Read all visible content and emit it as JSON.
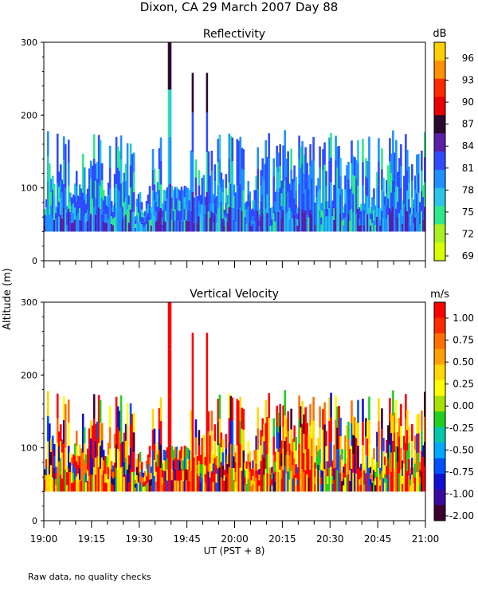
{
  "title": "Dixon, CA 29 March 2007  Day  88",
  "shared_ylabel": "Altitude (m)",
  "xlabel": "UT  (PST + 8)",
  "footnote": "Raw data, no quality checks",
  "chart_data": [
    {
      "type": "heatmap",
      "title": "Reflectivity",
      "x": [
        "19:00",
        "19:15",
        "19:30",
        "19:45",
        "20:00",
        "20:15",
        "20:30",
        "20:45",
        "21:00"
      ],
      "xlim": [
        0,
        120
      ],
      "x_units": "minutes after 19:00 UT",
      "ylim": [
        0,
        300
      ],
      "yticks": [
        0,
        100,
        200,
        300
      ],
      "colorbar": {
        "units": "dB",
        "tick_labels": [
          "96",
          "93",
          "90",
          "87",
          "84",
          "81",
          "78",
          "75",
          "72",
          "69"
        ],
        "colors": [
          "#ffd000",
          "#ff9000",
          "#ff2a00",
          "#e80000",
          "#2b0a2f",
          "#5a1ea8",
          "#2f4bff",
          "#1e90ff",
          "#29c4e8",
          "#2ee88a",
          "#a8f020",
          "#d8ff00"
        ],
        "range": [
          69,
          97
        ]
      },
      "data_summary": {
        "echo_base_m": 40,
        "typical_top_m": [
          60,
          180
        ],
        "max_top_m": 300,
        "dominant_values_dB": [
          78,
          81,
          84
        ]
      }
    },
    {
      "type": "heatmap",
      "title": "Vertical Velocity",
      "x": [
        "19:00",
        "19:15",
        "19:30",
        "19:45",
        "20:00",
        "20:15",
        "20:30",
        "20:45",
        "21:00"
      ],
      "xlim": [
        0,
        120
      ],
      "x_units": "minutes after 19:00 UT",
      "ylim": [
        0,
        300
      ],
      "yticks": [
        0,
        100,
        200,
        300
      ],
      "colorbar": {
        "units": "m/s",
        "tick_labels": [
          "1.00",
          "0.75",
          "0.50",
          "0.25",
          "0.00",
          "-0.25",
          "-0.50",
          "-0.75",
          "-1.00",
          "-2.00"
        ],
        "colors": [
          "#ff0000",
          "#ff2a00",
          "#ff7000",
          "#ffa000",
          "#ffd800",
          "#ffff00",
          "#a8e000",
          "#20d020",
          "#00c8a8",
          "#00a8ff",
          "#0050ff",
          "#1010d0",
          "#3a0aa0",
          "#3b0030"
        ],
        "range": [
          -2.0,
          1.2
        ]
      },
      "data_summary": {
        "echo_base_m": 40,
        "typical_top_m": [
          60,
          180
        ],
        "max_top_m": 300,
        "dominant_values_ms": [
          0.5,
          1.0,
          -0.5
        ]
      }
    }
  ]
}
